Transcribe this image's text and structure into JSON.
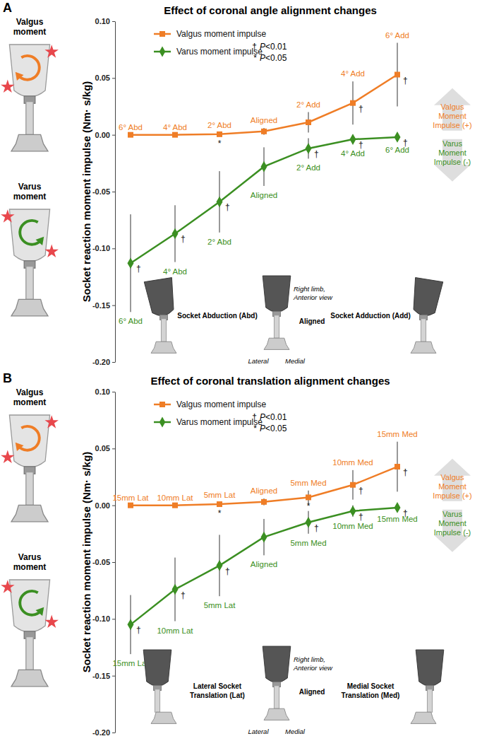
{
  "chart_data": [
    {
      "type": "line",
      "panel_label": "A",
      "title": "Effect of coronal angle alignment changes",
      "y_label": "Socket reaction moment impulse (Nm· s/kg)",
      "categories": [
        "6° Abd",
        "4° Abd",
        "2° Abd",
        "Aligned",
        "2° Add",
        "4° Add",
        "6° Add"
      ],
      "ylim": [
        -0.2,
        0.1
      ],
      "yticks": [
        {
          "value": -0.2,
          "label": "-0.20"
        },
        {
          "value": -0.15,
          "label": "-0.15"
        },
        {
          "value": -0.1,
          "label": "-0.10"
        },
        {
          "value": -0.05,
          "label": "-0.05"
        },
        {
          "value": 0,
          "label": "0.00"
        },
        {
          "value": 0.05,
          "label": "0.05"
        },
        {
          "value": 0.1,
          "label": "0.10"
        }
      ],
      "tick_labels": "y",
      "grid": false,
      "legend": "top-left",
      "series": [
        {
          "name": "Valgus moment impulse",
          "color": "#ef7d26",
          "marker": "square",
          "line_style": "solid",
          "values": [
            0.0,
            0.0,
            0.0005,
            0.003,
            0.011,
            0.028,
            0.053
          ],
          "errors": [
            0.0,
            0.0,
            0.001,
            0.003,
            0.009,
            0.019,
            0.028
          ],
          "significance": [
            null,
            null,
            "*",
            null,
            null,
            "†",
            "†"
          ]
        },
        {
          "name": "Varus moment impulse",
          "color": "#3b8f22",
          "marker": "diamond",
          "line_style": "solid",
          "values": [
            -0.113,
            -0.087,
            -0.059,
            -0.028,
            -0.012,
            -0.004,
            -0.002
          ],
          "errors": [
            0.043,
            0.025,
            0.027,
            0.017,
            0.009,
            0.004,
            0.003
          ],
          "significance": [
            "†",
            "†",
            "†",
            null,
            "†",
            "†",
            "†"
          ]
        }
      ],
      "significance_legend": [
        {
          "symbol": "†",
          "label": "P<0.01"
        },
        {
          "symbol": "*",
          "label": "P<0.05"
        }
      ],
      "side_labels": [
        [
          "Valgus",
          "moment"
        ],
        [
          "Varus",
          "moment"
        ]
      ],
      "direction_labels": [
        [
          "Valgus",
          "Moment",
          "Impulse (+)"
        ],
        [
          "Varus",
          "Moment",
          "Impulse (-)"
        ]
      ],
      "illustration_labels": {
        "left": [
          "Socket Abduction (Abd)"
        ],
        "center": [
          "Aligned"
        ],
        "right": [
          "Socket Adduction (Add)"
        ],
        "view": [
          "Right limb,",
          "Anterior view"
        ],
        "lateral": "Lateral",
        "medial": "Medial"
      }
    },
    {
      "type": "line",
      "panel_label": "B",
      "title": "Effect of coronal translation alignment changes",
      "y_label": "Socket reaction moment impulse (Nm· s/kg)",
      "categories": [
        "15mm Lat",
        "10mm Lat",
        "5mm Lat",
        "Aligned",
        "5mm Med",
        "10mm Med",
        "15mm Med"
      ],
      "ylim": [
        -0.2,
        0.1
      ],
      "yticks": [
        {
          "value": -0.2,
          "label": "-0.20"
        },
        {
          "value": -0.15,
          "label": "-0.15"
        },
        {
          "value": -0.1,
          "label": "-0.10"
        },
        {
          "value": -0.05,
          "label": "-0.05"
        },
        {
          "value": 0,
          "label": "0.00"
        },
        {
          "value": 0.05,
          "label": "0.05"
        },
        {
          "value": 0.1,
          "label": "0.10"
        }
      ],
      "tick_labels": "y",
      "grid": false,
      "legend": "top-left",
      "series": [
        {
          "name": "Valgus moment impulse",
          "color": "#ef7d26",
          "marker": "square",
          "line_style": "solid",
          "values": [
            0.0,
            0.0,
            0.001,
            0.003,
            0.007,
            0.018,
            0.034
          ],
          "errors": [
            0.0,
            0.0,
            0.001,
            0.003,
            0.006,
            0.013,
            0.022
          ],
          "significance": [
            null,
            null,
            "*",
            null,
            "*",
            "†",
            "†"
          ]
        },
        {
          "name": "Varus moment impulse",
          "color": "#3b8f22",
          "marker": "diamond",
          "line_style": "solid",
          "values": [
            -0.105,
            -0.074,
            -0.053,
            -0.028,
            -0.015,
            -0.005,
            -0.002
          ],
          "errors": [
            0.026,
            0.028,
            0.027,
            0.016,
            0.01,
            0.005,
            0.002
          ],
          "significance": [
            "†",
            "†",
            "†",
            null,
            "†",
            "†",
            "†"
          ]
        }
      ],
      "significance_legend": [
        {
          "symbol": "†",
          "label": "P<0.01"
        },
        {
          "symbol": "*",
          "label": "P<0.05"
        }
      ],
      "side_labels": [
        [
          "Valgus",
          "moment"
        ],
        [
          "Varus",
          "moment"
        ]
      ],
      "direction_labels": [
        [
          "Valgus",
          "Moment",
          "Impulse (+)"
        ],
        [
          "Varus",
          "Moment",
          "Impulse (-)"
        ]
      ],
      "illustration_labels": {
        "left": [
          "Lateral Socket",
          "Translation (Lat)"
        ],
        "center": [
          "Aligned"
        ],
        "right": [
          "Medial Socket",
          "Translation (Med)"
        ],
        "view": [
          "Right limb,",
          "Anterior view"
        ],
        "lateral": "Lateral",
        "medial": "Medial"
      }
    }
  ]
}
